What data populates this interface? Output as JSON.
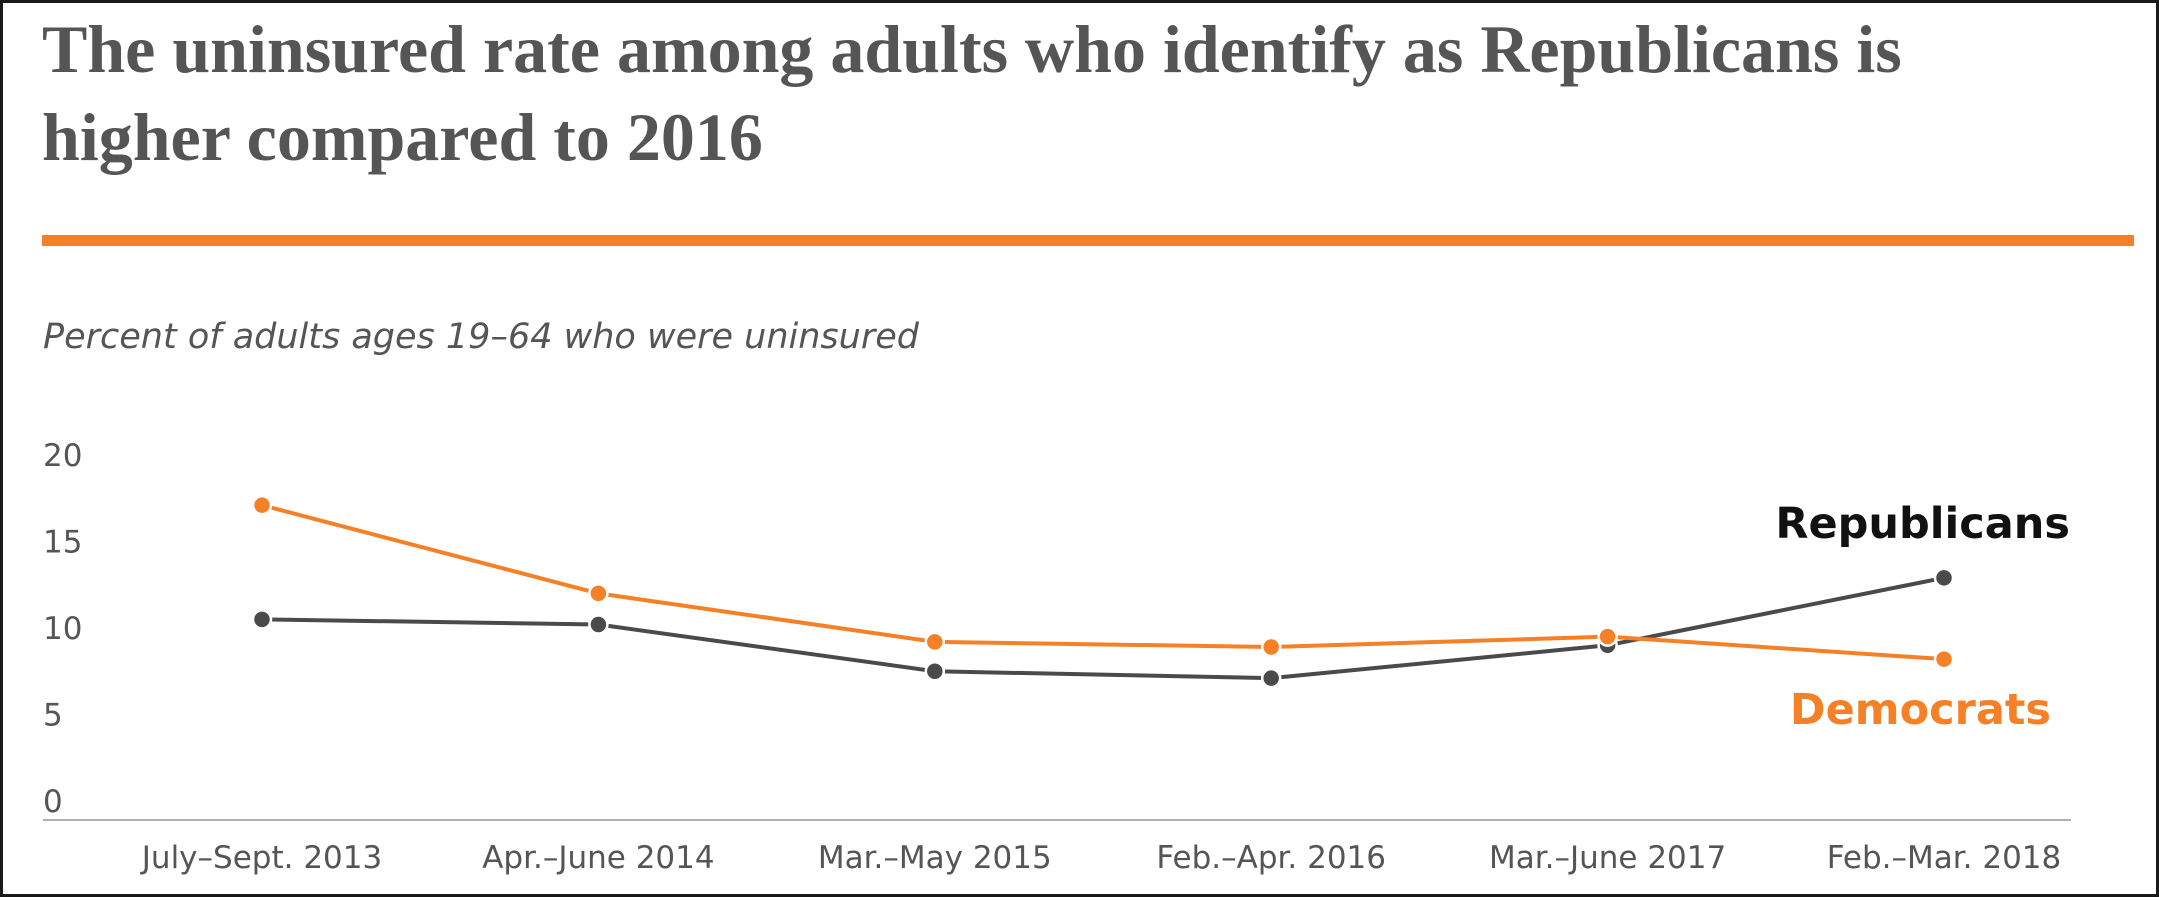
{
  "title": "The uninsured rate among adults who identify as Republicans is higher compared to 2016",
  "colors": {
    "accent": "#f58025",
    "republicans": "#4a4a4a",
    "democrats": "#f58025",
    "text": "#555555"
  },
  "chart_data": {
    "type": "line",
    "title": "The uninsured rate among adults who identify as Republicans is higher compared to 2016",
    "subtitle": "Percent of adults ages 19–64 who were uninsured",
    "xlabel": "",
    "ylabel": "",
    "ylim": [
      0,
      20
    ],
    "yticks": [
      0,
      5,
      10,
      15,
      20
    ],
    "grid": false,
    "legend": "inline-right",
    "categories": [
      "July–Sept. 2013",
      "Apr.–June 2014",
      "Mar.–May 2015",
      "Feb.–Apr. 2016",
      "Mar.–June 2017",
      "Feb.–Mar. 2018"
    ],
    "series": [
      {
        "name": "Republicans",
        "color": "#4a4a4a",
        "values": [
          10.5,
          10.2,
          7.5,
          7.1,
          9.0,
          12.9
        ]
      },
      {
        "name": "Democrats",
        "color": "#f58025",
        "values": [
          17.1,
          12.0,
          9.2,
          8.9,
          9.5,
          8.2
        ]
      }
    ]
  }
}
